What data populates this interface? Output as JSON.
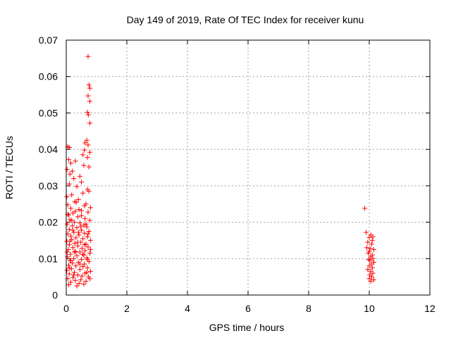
{
  "chart_data": {
    "type": "scatter",
    "title": "Day 149 of 2019, Rate Of TEC Index for receiver kunu",
    "xlabel": "GPS time / hours",
    "ylabel": "ROTI / TECUs",
    "xlim": [
      0,
      12
    ],
    "ylim": [
      0,
      0.07
    ],
    "x_ticks": [
      "0",
      "2",
      "4",
      "6",
      "8",
      "10",
      "12"
    ],
    "y_ticks": [
      "0",
      "0.01",
      "0.02",
      "0.03",
      "0.04",
      "0.05",
      "0.06",
      "0.07"
    ],
    "grid": true,
    "marker": "+",
    "point_color": "#ff0000",
    "series": [
      {
        "points": [
          [
            0.72,
            0.0655
          ],
          [
            0.75,
            0.0577
          ],
          [
            0.78,
            0.0568
          ],
          [
            0.72,
            0.0547
          ],
          [
            0.78,
            0.0532
          ],
          [
            0.7,
            0.0502
          ],
          [
            0.73,
            0.0495
          ],
          [
            0.78,
            0.0472
          ],
          [
            0.68,
            0.0425
          ],
          [
            0.62,
            0.0418
          ],
          [
            0.72,
            0.0412
          ],
          [
            0.05,
            0.0408
          ],
          [
            0.1,
            0.0405
          ],
          [
            0.6,
            0.0398
          ],
          [
            0.78,
            0.0392
          ],
          [
            0.55,
            0.0385
          ],
          [
            0.7,
            0.0378
          ],
          [
            0.08,
            0.0372
          ],
          [
            0.3,
            0.0368
          ],
          [
            0.15,
            0.0362
          ],
          [
            0.58,
            0.0356
          ],
          [
            0.75,
            0.0352
          ],
          [
            0.03,
            0.0345
          ],
          [
            0.2,
            0.034
          ],
          [
            0.12,
            0.0332
          ],
          [
            0.45,
            0.0326
          ],
          [
            0.25,
            0.032
          ],
          [
            0.5,
            0.031
          ],
          [
            0.1,
            0.0305
          ],
          [
            0.35,
            0.0298
          ],
          [
            0.7,
            0.029
          ],
          [
            0.75,
            0.0285
          ],
          [
            0.55,
            0.028
          ],
          [
            0.18,
            0.0275
          ],
          [
            0.02,
            0.027
          ],
          [
            0.4,
            0.0262
          ],
          [
            0.28,
            0.0256
          ],
          [
            0.65,
            0.025
          ],
          [
            0.05,
            0.0248
          ],
          [
            0.6,
            0.0245
          ],
          [
            0.8,
            0.024
          ],
          [
            0.15,
            0.0238
          ],
          [
            0.42,
            0.0235
          ],
          [
            0.3,
            0.023
          ],
          [
            0.72,
            0.0228
          ],
          [
            0.22,
            0.0225
          ],
          [
            0.08,
            0.022
          ],
          [
            0.5,
            0.0218
          ],
          [
            0.38,
            0.0215
          ],
          [
            0.62,
            0.021
          ],
          [
            0.12,
            0.0207
          ],
          [
            0.78,
            0.0205
          ],
          [
            0.27,
            0.02
          ],
          [
            0.45,
            0.0198
          ],
          [
            0.03,
            0.0195
          ],
          [
            0.58,
            0.0192
          ],
          [
            0.2,
            0.019
          ],
          [
            0.68,
            0.0187
          ],
          [
            0.35,
            0.0185
          ],
          [
            0.1,
            0.018
          ],
          [
            0.5,
            0.0178
          ],
          [
            0.75,
            0.0175
          ],
          [
            0.25,
            0.0172
          ],
          [
            0.6,
            0.017
          ],
          [
            0.05,
            0.0168
          ],
          [
            0.42,
            0.0165
          ],
          [
            0.15,
            0.0162
          ],
          [
            0.7,
            0.016
          ],
          [
            0.32,
            0.0157
          ],
          [
            0.55,
            0.0155
          ],
          [
            0.18,
            0.0152
          ],
          [
            0.8,
            0.015
          ],
          [
            0.02,
            0.0148
          ],
          [
            0.48,
            0.0145
          ],
          [
            0.28,
            0.0142
          ],
          [
            0.65,
            0.014
          ],
          [
            0.1,
            0.0138
          ],
          [
            0.38,
            0.0135
          ],
          [
            0.72,
            0.0132
          ],
          [
            0.22,
            0.013
          ],
          [
            0.52,
            0.0128
          ],
          [
            0.07,
            0.0125
          ],
          [
            0.62,
            0.0122
          ],
          [
            0.3,
            0.012
          ],
          [
            0.45,
            0.0118
          ],
          [
            0.78,
            0.0115
          ],
          [
            0.14,
            0.0112
          ],
          [
            0.58,
            0.011
          ],
          [
            0.35,
            0.0108
          ],
          [
            0.04,
            0.0105
          ],
          [
            0.68,
            0.0102
          ],
          [
            0.25,
            0.01
          ],
          [
            0.5,
            0.0098
          ],
          [
            0.12,
            0.0095
          ],
          [
            0.75,
            0.0092
          ],
          [
            0.4,
            0.009
          ],
          [
            0.2,
            0.0088
          ],
          [
            0.6,
            0.0085
          ],
          [
            0.08,
            0.0082
          ],
          [
            0.32,
            0.008
          ],
          [
            0.55,
            0.0078
          ],
          [
            0.7,
            0.0075
          ],
          [
            0.17,
            0.0072
          ],
          [
            0.45,
            0.007
          ],
          [
            0.02,
            0.0068
          ],
          [
            0.8,
            0.0065
          ],
          [
            0.27,
            0.0062
          ],
          [
            0.62,
            0.006
          ],
          [
            0.1,
            0.0058
          ],
          [
            0.38,
            0.0055
          ],
          [
            0.52,
            0.0052
          ],
          [
            0.73,
            0.005
          ],
          [
            0.22,
            0.0048
          ],
          [
            0.05,
            0.0045
          ],
          [
            0.48,
            0.0042
          ],
          [
            0.3,
            0.004
          ],
          [
            0.65,
            0.0038
          ],
          [
            0.15,
            0.0035
          ],
          [
            0.42,
            0.0032
          ],
          [
            0.58,
            0.003
          ],
          [
            0.08,
            0.0028
          ],
          [
            0.35,
            0.0025
          ],
          [
            0.78,
            0.0045
          ],
          [
            0.25,
            0.0055
          ],
          [
            0.68,
            0.0062
          ],
          [
            0.12,
            0.0148
          ],
          [
            0.4,
            0.0172
          ],
          [
            0.6,
            0.0138
          ],
          [
            0.18,
            0.0205
          ],
          [
            0.5,
            0.0232
          ],
          [
            0.28,
            0.0118
          ],
          [
            0.72,
            0.0168
          ],
          [
            0.05,
            0.0222
          ],
          [
            0.45,
            0.0085
          ],
          [
            0.65,
            0.0195
          ],
          [
            0.33,
            0.0255
          ],
          [
            0.15,
            0.0095
          ],
          [
            0.55,
            0.0112
          ],
          [
            0.8,
            0.0125
          ],
          [
            0.22,
            0.0178
          ],
          [
            0.03,
            0.0118
          ],
          [
            0.38,
            0.0145
          ],
          [
            0.7,
            0.0098
          ],
          [
            0.48,
            0.0188
          ],
          [
            0.1,
            0.0075
          ],
          [
            9.85,
            0.0238
          ],
          [
            9.9,
            0.0172
          ],
          [
            10.05,
            0.0165
          ],
          [
            10.12,
            0.016
          ],
          [
            10.0,
            0.0158
          ],
          [
            10.1,
            0.015
          ],
          [
            9.95,
            0.0145
          ],
          [
            10.08,
            0.014
          ],
          [
            9.92,
            0.013
          ],
          [
            10.03,
            0.0128
          ],
          [
            10.15,
            0.0125
          ],
          [
            10.0,
            0.012
          ],
          [
            9.97,
            0.0115
          ],
          [
            10.1,
            0.011
          ],
          [
            10.05,
            0.0105
          ],
          [
            10.12,
            0.01
          ],
          [
            9.98,
            0.0098
          ],
          [
            10.02,
            0.0095
          ],
          [
            10.15,
            0.009
          ],
          [
            10.07,
            0.0085
          ],
          [
            10.0,
            0.008
          ],
          [
            10.1,
            0.0075
          ],
          [
            9.95,
            0.007
          ],
          [
            10.05,
            0.0065
          ],
          [
            10.12,
            0.006
          ],
          [
            10.02,
            0.0055
          ],
          [
            10.08,
            0.005
          ],
          [
            10.0,
            0.0045
          ],
          [
            10.15,
            0.0042
          ],
          [
            10.05,
            0.0038
          ]
        ]
      }
    ]
  }
}
